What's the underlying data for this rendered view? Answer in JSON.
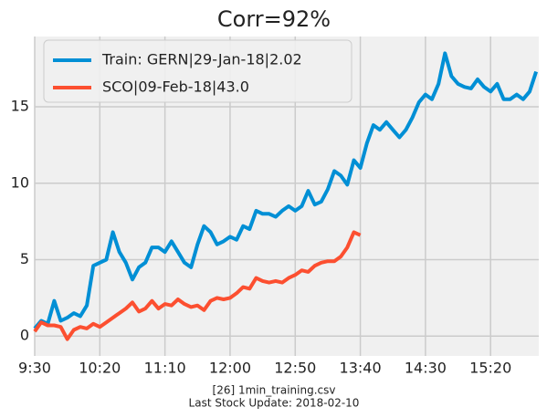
{
  "chart_data": {
    "type": "line",
    "title": "Corr=92%",
    "x": [
      "9:30",
      "9:35",
      "9:40",
      "9:45",
      "9:50",
      "9:55",
      "10:00",
      "10:05",
      "10:10",
      "10:15",
      "10:20",
      "10:25",
      "10:30",
      "10:35",
      "10:40",
      "10:45",
      "10:50",
      "10:55",
      "11:00",
      "11:05",
      "11:10",
      "11:15",
      "11:20",
      "11:25",
      "11:30",
      "11:35",
      "11:40",
      "11:45",
      "11:50",
      "11:55",
      "12:00",
      "12:05",
      "12:10",
      "12:15",
      "12:20",
      "12:25",
      "12:30",
      "12:35",
      "12:40",
      "12:45",
      "12:50",
      "12:55",
      "13:00",
      "13:05",
      "13:10",
      "13:15",
      "13:20",
      "13:25",
      "13:30",
      "13:35",
      "13:40",
      "13:45",
      "13:50",
      "13:55",
      "14:00",
      "14:05",
      "14:10",
      "14:15",
      "14:20",
      "14:25",
      "14:30",
      "14:35",
      "14:40",
      "14:45",
      "14:50",
      "14:55",
      "15:00",
      "15:05",
      "15:10",
      "15:15",
      "15:20",
      "15:25",
      "15:30",
      "15:35",
      "15:40",
      "15:45",
      "15:50",
      "15:55"
    ],
    "series": [
      {
        "name": "Train: GERN|29-Jan-18|2.02",
        "color": "#008fd5",
        "values": [
          0.5,
          1.0,
          0.8,
          2.3,
          1.0,
          1.2,
          1.5,
          1.3,
          2.0,
          4.6,
          4.8,
          5.0,
          6.8,
          5.5,
          4.8,
          3.7,
          4.5,
          4.8,
          5.8,
          5.8,
          5.5,
          6.2,
          5.5,
          4.8,
          4.5,
          6.0,
          7.2,
          6.8,
          6.0,
          6.2,
          6.5,
          6.3,
          7.2,
          7.0,
          8.2,
          8.0,
          8.0,
          7.8,
          8.2,
          8.5,
          8.2,
          8.5,
          9.5,
          8.6,
          8.8,
          9.6,
          10.8,
          10.5,
          9.9,
          11.5,
          11.0,
          12.6,
          13.8,
          13.5,
          14.0,
          13.5,
          13.0,
          13.5,
          14.3,
          15.3,
          15.8,
          15.5,
          16.5,
          18.5,
          17.0,
          16.5,
          16.3,
          16.2,
          16.8,
          16.3,
          16.0,
          16.5,
          15.5,
          15.5,
          15.8,
          15.5,
          16.0,
          17.3
        ]
      },
      {
        "name": "SCO|09-Feb-18|43.0",
        "color": "#fc4f30",
        "values": [
          0.3,
          0.9,
          0.7,
          0.7,
          0.6,
          -0.2,
          0.4,
          0.6,
          0.5,
          0.8,
          0.6,
          0.9,
          1.2,
          1.5,
          1.8,
          2.2,
          1.6,
          1.8,
          2.3,
          1.8,
          2.1,
          2.0,
          2.4,
          2.1,
          1.9,
          2.0,
          1.7,
          2.3,
          2.5,
          2.4,
          2.5,
          2.8,
          3.2,
          3.1,
          3.8,
          3.6,
          3.5,
          3.6,
          3.5,
          3.8,
          4.0,
          4.3,
          4.2,
          4.6,
          4.8,
          4.9,
          4.9,
          5.2,
          5.8,
          6.8,
          6.6,
          null,
          null,
          null,
          null,
          null,
          null,
          null,
          null,
          null,
          null,
          null,
          null,
          null,
          null,
          null,
          null,
          null,
          null,
          null,
          null,
          null,
          null,
          null,
          null,
          null,
          null,
          null
        ]
      }
    ],
    "xlim": [
      "9:30",
      "15:57"
    ],
    "xticks": [
      "9:30",
      "10:20",
      "11:10",
      "12:00",
      "12:50",
      "13:40",
      "14:30",
      "15:20"
    ],
    "ylim": [
      -1.3,
      19.6
    ],
    "yticks": [
      0,
      5,
      10,
      15
    ],
    "grid": true,
    "legend": "upper left",
    "footer": [
      "[26] 1min_training.csv",
      "Last Stock Update: 2018-02-10"
    ]
  }
}
